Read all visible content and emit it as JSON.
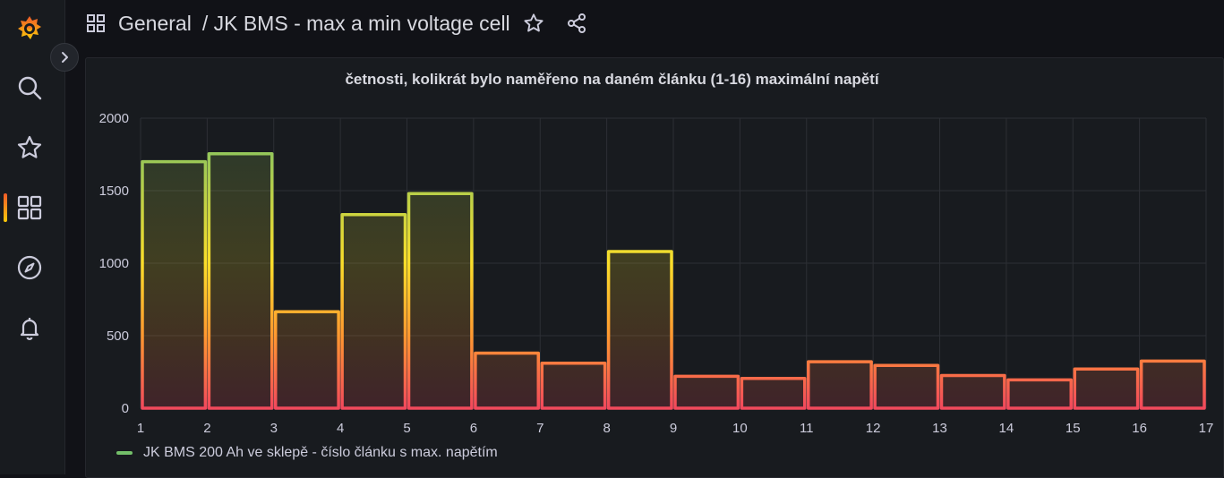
{
  "header": {
    "folder": "General",
    "dashboard": "/ JK BMS - max a min voltage cell"
  },
  "sidebar": {
    "items": [
      {
        "name": "search",
        "icon": "search-icon"
      },
      {
        "name": "starred",
        "icon": "star-icon"
      },
      {
        "name": "dashboards",
        "icon": "grid-icon",
        "active": true
      },
      {
        "name": "explore",
        "icon": "compass-icon"
      },
      {
        "name": "alerting",
        "icon": "bell-icon"
      }
    ]
  },
  "panel": {
    "title": "četnosti, kolikrát bylo naměřeno na daném článku (1-16) maximální napětí"
  },
  "chart_data": {
    "type": "bar",
    "title": "četnosti, kolikrát bylo naměřeno na daném článku (1-16) maximální napětí",
    "x_ticks": [
      "1",
      "2",
      "3",
      "4",
      "5",
      "6",
      "7",
      "8",
      "9",
      "10",
      "11",
      "12",
      "13",
      "14",
      "15",
      "16",
      "17"
    ],
    "y_ticks": [
      "0",
      "500",
      "1000",
      "1500",
      "2000"
    ],
    "xlim": [
      1,
      17
    ],
    "ylim": [
      0,
      2000
    ],
    "grid": true,
    "legend_position": "bottom-left",
    "colors": {
      "high": "#73bf69",
      "mid": "#fade2a",
      "midlow": "#ff9830",
      "low": "#f2495c"
    },
    "series": [
      {
        "name": "JK BMS 200 Ah ve sklepě - číslo článku s max. napětím",
        "bins": [
          {
            "x0": 1,
            "x1": 2,
            "value": 1700
          },
          {
            "x0": 2,
            "x1": 3,
            "value": 1755
          },
          {
            "x0": 3,
            "x1": 4,
            "value": 665
          },
          {
            "x0": 4,
            "x1": 5,
            "value": 1335
          },
          {
            "x0": 5,
            "x1": 6,
            "value": 1480
          },
          {
            "x0": 6,
            "x1": 7,
            "value": 380
          },
          {
            "x0": 7,
            "x1": 8,
            "value": 310
          },
          {
            "x0": 8,
            "x1": 9,
            "value": 1080
          },
          {
            "x0": 9,
            "x1": 10,
            "value": 220
          },
          {
            "x0": 10,
            "x1": 11,
            "value": 205
          },
          {
            "x0": 11,
            "x1": 12,
            "value": 320
          },
          {
            "x0": 12,
            "x1": 13,
            "value": 295
          },
          {
            "x0": 13,
            "x1": 14,
            "value": 225
          },
          {
            "x0": 14,
            "x1": 15,
            "value": 195
          },
          {
            "x0": 15,
            "x1": 16,
            "value": 270
          },
          {
            "x0": 16,
            "x1": 17,
            "value": 325
          }
        ]
      }
    ]
  },
  "legend": {
    "label": "JK BMS 200 Ah ve sklepě - číslo článku s max. napětím"
  }
}
